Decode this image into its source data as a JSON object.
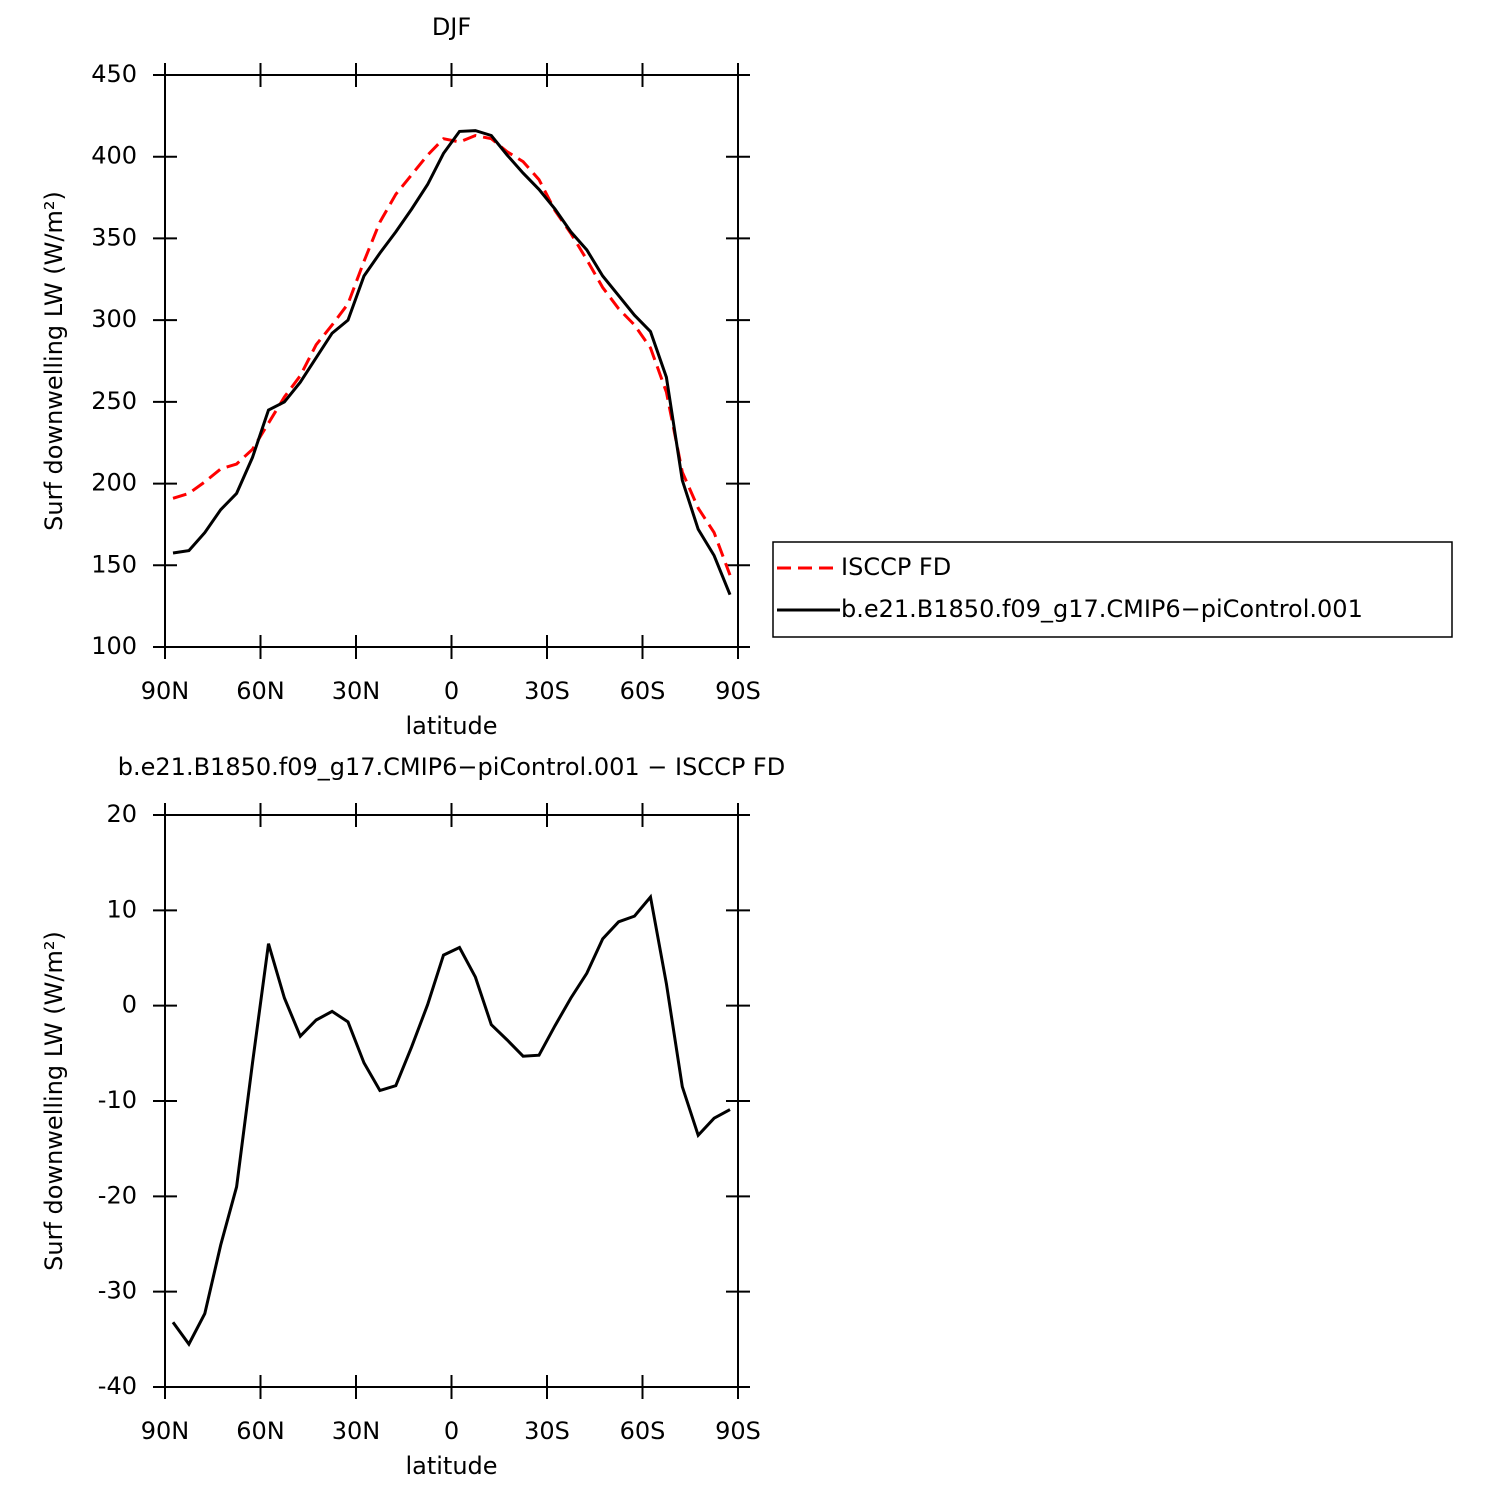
{
  "chart_data": [
    {
      "type": "line",
      "title": "DJF",
      "xlabel": "latitude",
      "ylabel": "Surf downwelling LW (W/m²)",
      "x": [
        87.5,
        82.5,
        77.5,
        72.5,
        67.5,
        62.5,
        57.5,
        52.5,
        47.5,
        42.5,
        37.5,
        32.5,
        27.5,
        22.5,
        17.5,
        12.5,
        7.5,
        2.5,
        -2.5,
        -7.5,
        -12.5,
        -17.5,
        -22.5,
        -27.5,
        -32.5,
        -37.5,
        -42.5,
        -47.5,
        -52.5,
        -57.5,
        -62.5,
        -67.5,
        -72.5,
        -77.5,
        -82.5,
        -87.5
      ],
      "series": [
        {
          "name": "ISCCP FD",
          "color": "#ff0000",
          "dash": "dashed",
          "values": [
            191,
            194,
            201,
            209,
            212,
            221,
            237,
            253,
            266,
            285,
            297,
            310,
            336,
            360,
            377,
            389,
            401,
            411,
            409,
            413,
            411,
            403,
            397,
            386,
            367,
            353,
            337,
            320,
            307,
            297,
            283,
            256,
            207,
            185,
            170,
            144
          ]
        },
        {
          "name": "b.e21.B1850.f09_g17.CMIP6−piControl.001",
          "color": "#000000",
          "dash": "solid",
          "values": [
            157.5,
            159,
            170,
            184,
            194,
            216,
            245,
            250,
            262,
            277,
            292,
            300,
            327,
            341,
            354,
            368,
            383,
            402,
            415.5,
            416,
            413,
            401,
            390,
            380,
            368,
            354,
            343,
            327,
            315,
            303,
            293,
            265,
            202,
            172,
            156,
            132
          ]
        }
      ],
      "xlim": [
        90,
        -90
      ],
      "ylim": [
        100,
        450
      ],
      "xticks": [
        {
          "value": 90,
          "label": "90N"
        },
        {
          "value": 60,
          "label": "60N"
        },
        {
          "value": 30,
          "label": "30N"
        },
        0,
        {
          "value": -30,
          "label": "30S"
        },
        {
          "value": -60,
          "label": "60S"
        },
        {
          "value": -90,
          "label": "90S"
        }
      ],
      "yticks": [
        100,
        150,
        200,
        250,
        300,
        350,
        400,
        450
      ],
      "legend": "right"
    },
    {
      "type": "line",
      "title": "b.e21.B1850.f09_g17.CMIP6−piControl.001 − ISCCP FD",
      "xlabel": "latitude",
      "ylabel": "Surf downwelling LW (W/m²)",
      "x": [
        87.5,
        82.5,
        77.5,
        72.5,
        67.5,
        62.5,
        57.5,
        52.5,
        47.5,
        42.5,
        37.5,
        32.5,
        27.5,
        22.5,
        17.5,
        12.5,
        7.5,
        2.5,
        -2.5,
        -7.5,
        -12.5,
        -17.5,
        -22.5,
        -27.5,
        -32.5,
        -37.5,
        -42.5,
        -47.5,
        -52.5,
        -57.5,
        -62.5,
        -67.5,
        -72.5,
        -77.5,
        -82.5,
        -87.5
      ],
      "series": [
        {
          "color": "#000000",
          "dash": "solid",
          "values": [
            -33.2,
            -35.5,
            -32.3,
            -25.1,
            -19,
            -6,
            6.5,
            0.8,
            -3.2,
            -1.5,
            -0.6,
            -1.7,
            -6,
            -8.9,
            -8.4,
            -4.3,
            0.1,
            5.3,
            6.1,
            3,
            -2,
            -3.6,
            -5.3,
            -5.2,
            -2.1,
            0.8,
            3.4,
            7,
            8.8,
            9.4,
            11.4,
            2.3,
            -8.5,
            -13.6,
            -11.8,
            -10.9
          ]
        }
      ],
      "xlim": [
        90,
        -90
      ],
      "ylim": [
        -40,
        20
      ],
      "xticks": [
        {
          "value": 90,
          "label": "90N"
        },
        {
          "value": 60,
          "label": "60N"
        },
        {
          "value": 30,
          "label": "30N"
        },
        0,
        {
          "value": -30,
          "label": "30S"
        },
        {
          "value": -60,
          "label": "60S"
        },
        {
          "value": -90,
          "label": "90S"
        }
      ],
      "yticks": [
        -40,
        -30,
        -20,
        -10,
        0,
        10,
        20
      ]
    }
  ]
}
